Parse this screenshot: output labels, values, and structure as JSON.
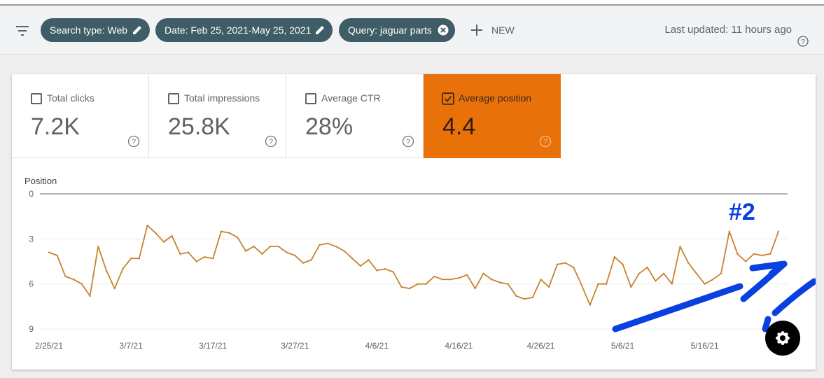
{
  "filters": {
    "chips": [
      {
        "label": "Search type: Web",
        "icon": "edit-icon"
      },
      {
        "label": "Date: Feb 25, 2021-May 25, 2021",
        "icon": "edit-icon"
      },
      {
        "label": "Query: jaguar parts",
        "icon": "remove-icon"
      }
    ],
    "new_label": "NEW",
    "last_updated": "Last updated: 11 hours ago"
  },
  "metrics": [
    {
      "label": "Total clicks",
      "value": "7.2K",
      "checked": false
    },
    {
      "label": "Total impressions",
      "value": "25.8K",
      "checked": false
    },
    {
      "label": "Average CTR",
      "value": "28%",
      "checked": false
    },
    {
      "label": "Average position",
      "value": "4.4",
      "checked": true
    }
  ],
  "colors": {
    "accent": "#e8710a",
    "chip": "#3f5d67",
    "line": "#c8822e",
    "annotation": "#0a3fe0"
  },
  "annotation_text": "#2",
  "chart_data": {
    "type": "line",
    "ylabel": "Position",
    "ylim": [
      0,
      9
    ],
    "y_reversed": true,
    "yticks": [
      "0",
      "3",
      "6",
      "9"
    ],
    "xtick_labels": [
      "2/25/21",
      "3/7/21",
      "3/17/21",
      "3/27/21",
      "4/6/21",
      "4/16/21",
      "4/26/21",
      "5/6/21",
      "5/16/21"
    ],
    "grid": true,
    "series": [
      {
        "values": [
          3.9,
          4.1,
          5.5,
          5.7,
          6.0,
          6.8,
          3.5,
          5.1,
          6.3,
          5.0,
          4.3,
          4.3,
          2.1,
          2.6,
          3.2,
          2.8,
          4.0,
          3.9,
          4.5,
          4.2,
          4.3,
          2.5,
          2.6,
          2.9,
          3.8,
          3.5,
          4.0,
          3.5,
          3.5,
          3.9,
          4.1,
          4.6,
          4.4,
          3.4,
          3.3,
          3.5,
          3.8,
          4.3,
          4.8,
          4.4,
          5.1,
          5.0,
          5.2,
          6.2,
          6.3,
          6.0,
          6.0,
          5.5,
          5.7,
          5.7,
          5.6,
          5.4,
          6.3,
          5.3,
          5.7,
          5.9,
          6.0,
          6.8,
          7.0,
          6.9,
          5.7,
          6.2,
          4.7,
          4.6,
          4.9,
          6.1,
          7.4,
          6.0,
          6.0,
          4.2,
          4.7,
          6.2,
          5.3,
          4.9,
          5.8,
          5.3,
          6.0,
          3.5,
          4.6,
          5.3,
          6.0,
          5.7,
          5.3,
          2.5,
          4.0,
          4.5,
          4.0,
          4.1,
          4.0,
          2.5
        ]
      }
    ]
  }
}
